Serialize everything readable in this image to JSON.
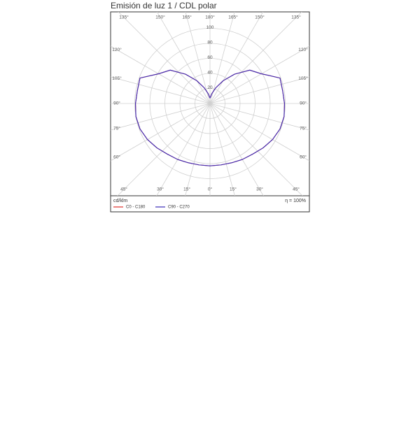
{
  "chart_data": {
    "type": "polar",
    "title": "Emisión de luz 1 / CDL polar",
    "unit_label": "cd/klm",
    "efficiency_label": "η = 100%",
    "x": [
      -180,
      -170,
      -160,
      -150,
      -140,
      -130,
      -120,
      -110,
      -100,
      -90,
      -80,
      -70,
      -60,
      -50,
      -40,
      -30,
      -20,
      -10,
      0,
      10,
      20,
      30,
      40,
      50,
      60,
      70,
      80,
      90,
      100,
      110,
      120,
      130,
      140,
      150,
      160,
      170,
      180
    ],
    "series": [
      {
        "name": "C0 - C180",
        "color": "#e0302a",
        "values": [
          7,
          13,
          22,
          35,
          51,
          69,
          79,
          99,
          98,
          99,
          100,
          99,
          96,
          92,
          88,
          86,
          84,
          83,
          83,
          83,
          84,
          86,
          88,
          92,
          96,
          99,
          100,
          99,
          98,
          99,
          79,
          69,
          51,
          35,
          22,
          13,
          7
        ]
      },
      {
        "name": "C90 - C270",
        "color": "#3b2db8",
        "values": [
          7,
          13,
          22,
          35,
          51,
          69,
          79,
          99,
          98,
          99,
          100,
          99,
          96,
          92,
          88,
          86,
          84,
          83,
          83,
          83,
          84,
          86,
          88,
          92,
          96,
          99,
          100,
          99,
          98,
          99,
          79,
          69,
          51,
          35,
          22,
          13,
          7
        ]
      }
    ],
    "rlim": [
      0,
      100
    ],
    "rticks": [
      20,
      40,
      60,
      80,
      100
    ],
    "angle_ticks": [
      {
        "value": -165,
        "label": "165°"
      },
      {
        "value": -150,
        "label": "150°"
      },
      {
        "value": -135,
        "label": "135°"
      },
      {
        "value": -120,
        "label": "120°"
      },
      {
        "value": -105,
        "label": "105°"
      },
      {
        "value": -90,
        "label": "90°"
      },
      {
        "value": -75,
        "label": "75°"
      },
      {
        "value": -60,
        "label": "60°"
      },
      {
        "value": -45,
        "label": "45°"
      },
      {
        "value": -30,
        "label": "30°"
      },
      {
        "value": -15,
        "label": "15°"
      },
      {
        "value": 0,
        "label": "0°"
      },
      {
        "value": 15,
        "label": "15°"
      },
      {
        "value": 30,
        "label": "30°"
      },
      {
        "value": 45,
        "label": "45°"
      },
      {
        "value": 60,
        "label": "60°"
      },
      {
        "value": 75,
        "label": "75°"
      },
      {
        "value": 90,
        "label": "90°"
      },
      {
        "value": 105,
        "label": "105°"
      },
      {
        "value": 120,
        "label": "120°"
      },
      {
        "value": 135,
        "label": "135°"
      },
      {
        "value": 150,
        "label": "150°"
      },
      {
        "value": 165,
        "label": "165°"
      },
      {
        "value": 180,
        "label": "180°"
      }
    ],
    "grid": true
  }
}
